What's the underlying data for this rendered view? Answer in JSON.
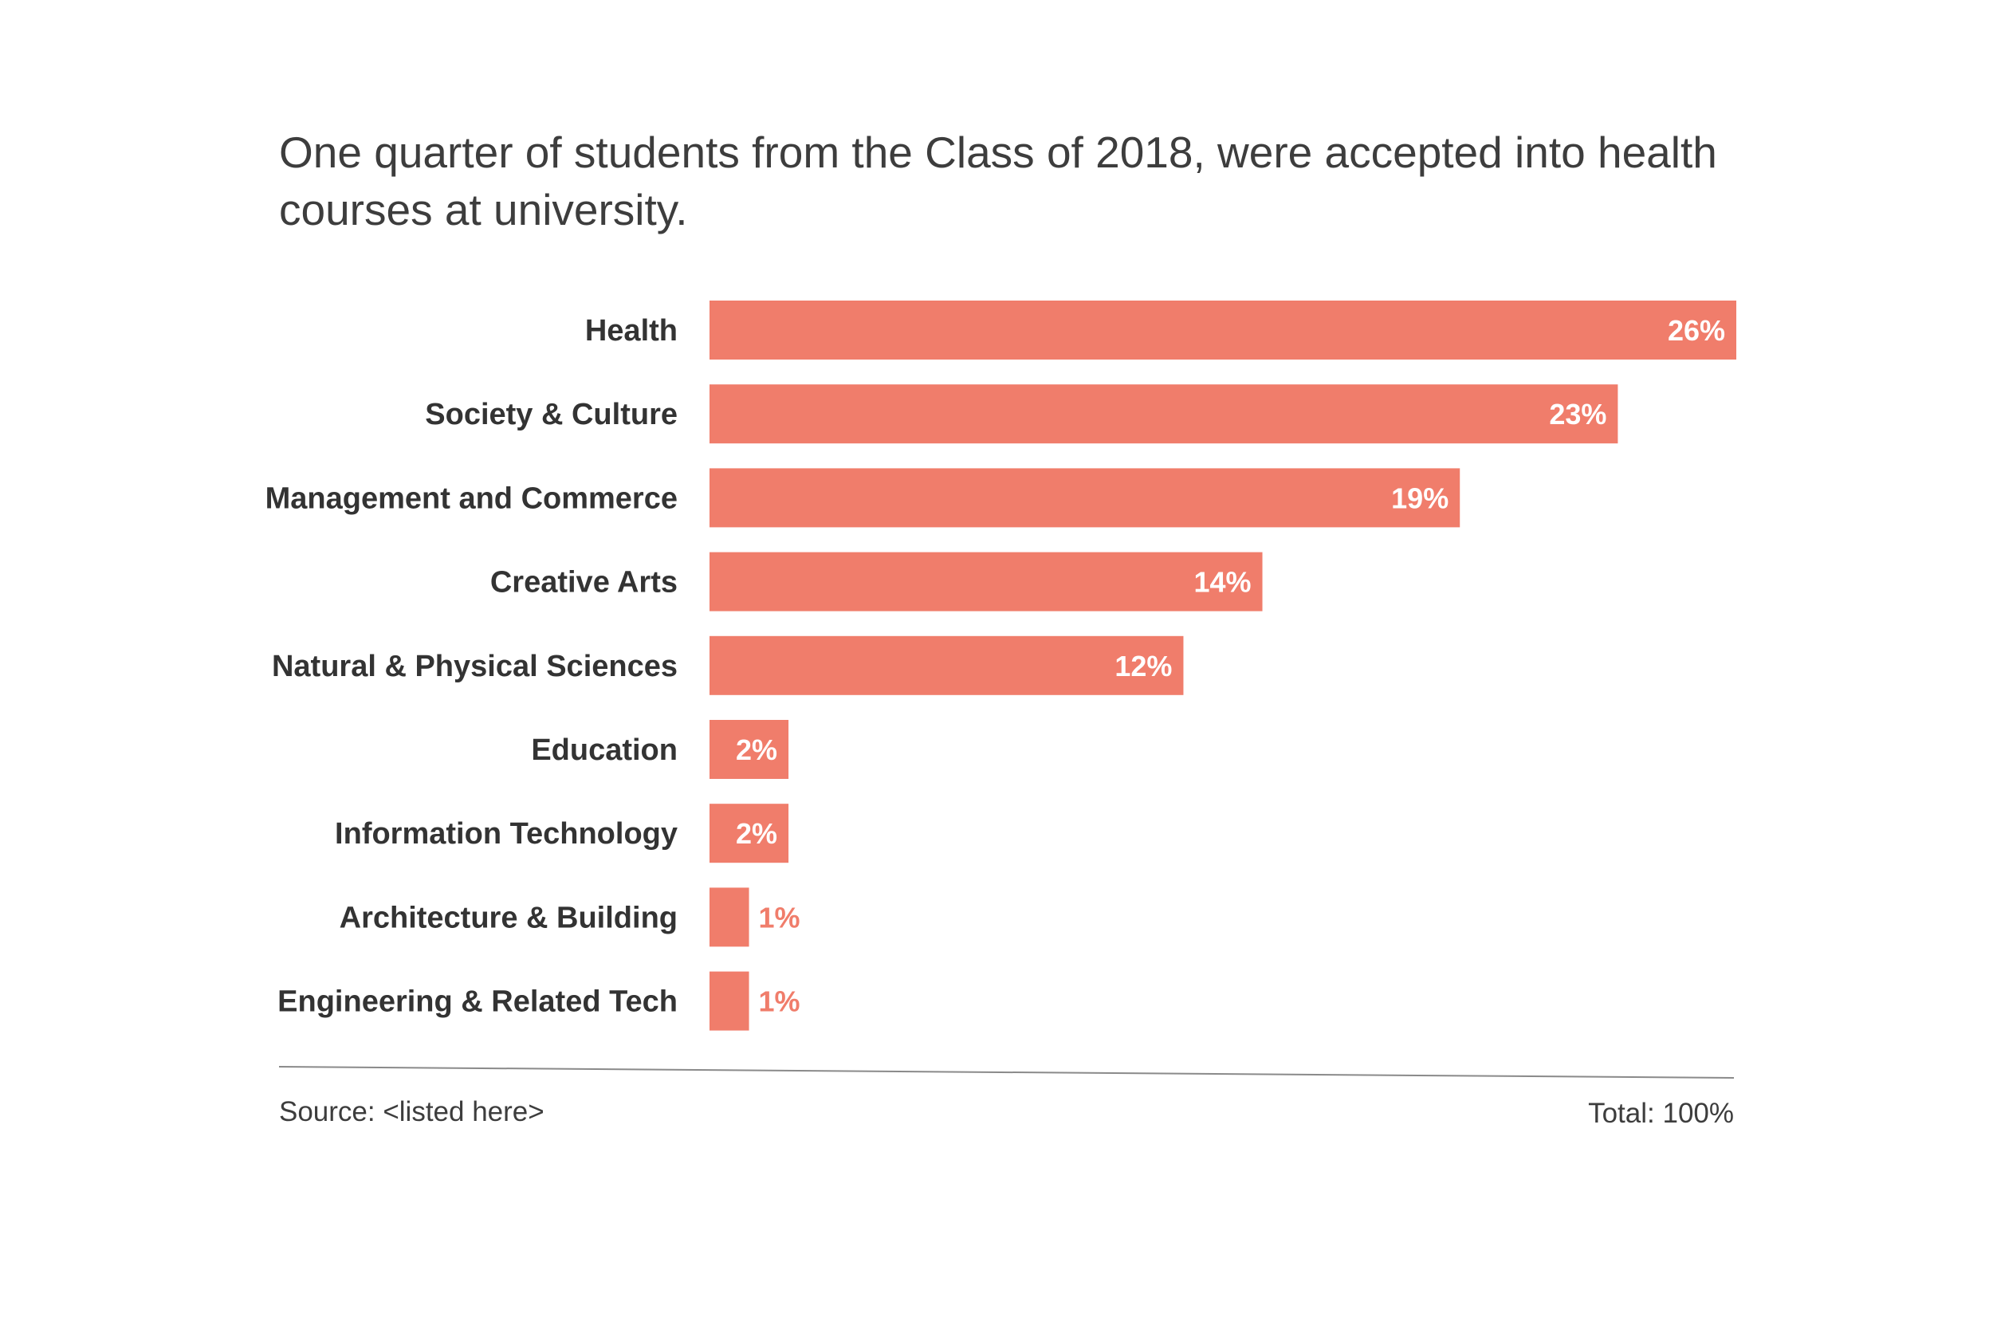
{
  "chart_data": {
    "type": "bar",
    "orientation": "horizontal",
    "title": "One quarter of students from the Class of 2018, were accepted into health courses at university.",
    "title_lines": [
      "One quarter of students from the Class of 2018, were accepted into health",
      "courses at university."
    ],
    "categories": [
      "Health",
      "Society & Culture",
      "Management and Commerce",
      "Creative Arts",
      "Natural & Physical Sciences",
      "Education",
      "Information Technology",
      "Architecture & Building",
      "Engineering & Related Tech"
    ],
    "values": [
      26,
      23,
      19,
      14,
      12,
      2,
      2,
      1,
      1
    ],
    "value_labels": [
      "26%",
      "23%",
      "19%",
      "14%",
      "12%",
      "2%",
      "2%",
      "1%",
      "1%"
    ],
    "xlim": [
      0,
      26
    ],
    "unit": "%",
    "source": "Source: <listed here>",
    "total": "Total: 100%",
    "grid": false,
    "colors": {
      "bar": "#F07D6B",
      "title": "#3d3d3d",
      "label": "#333333",
      "inside_value": "#ffffff",
      "outside_value": "#F07D6B",
      "axis_line": "#8a8a8a",
      "footer": "#3d3d3d"
    }
  }
}
